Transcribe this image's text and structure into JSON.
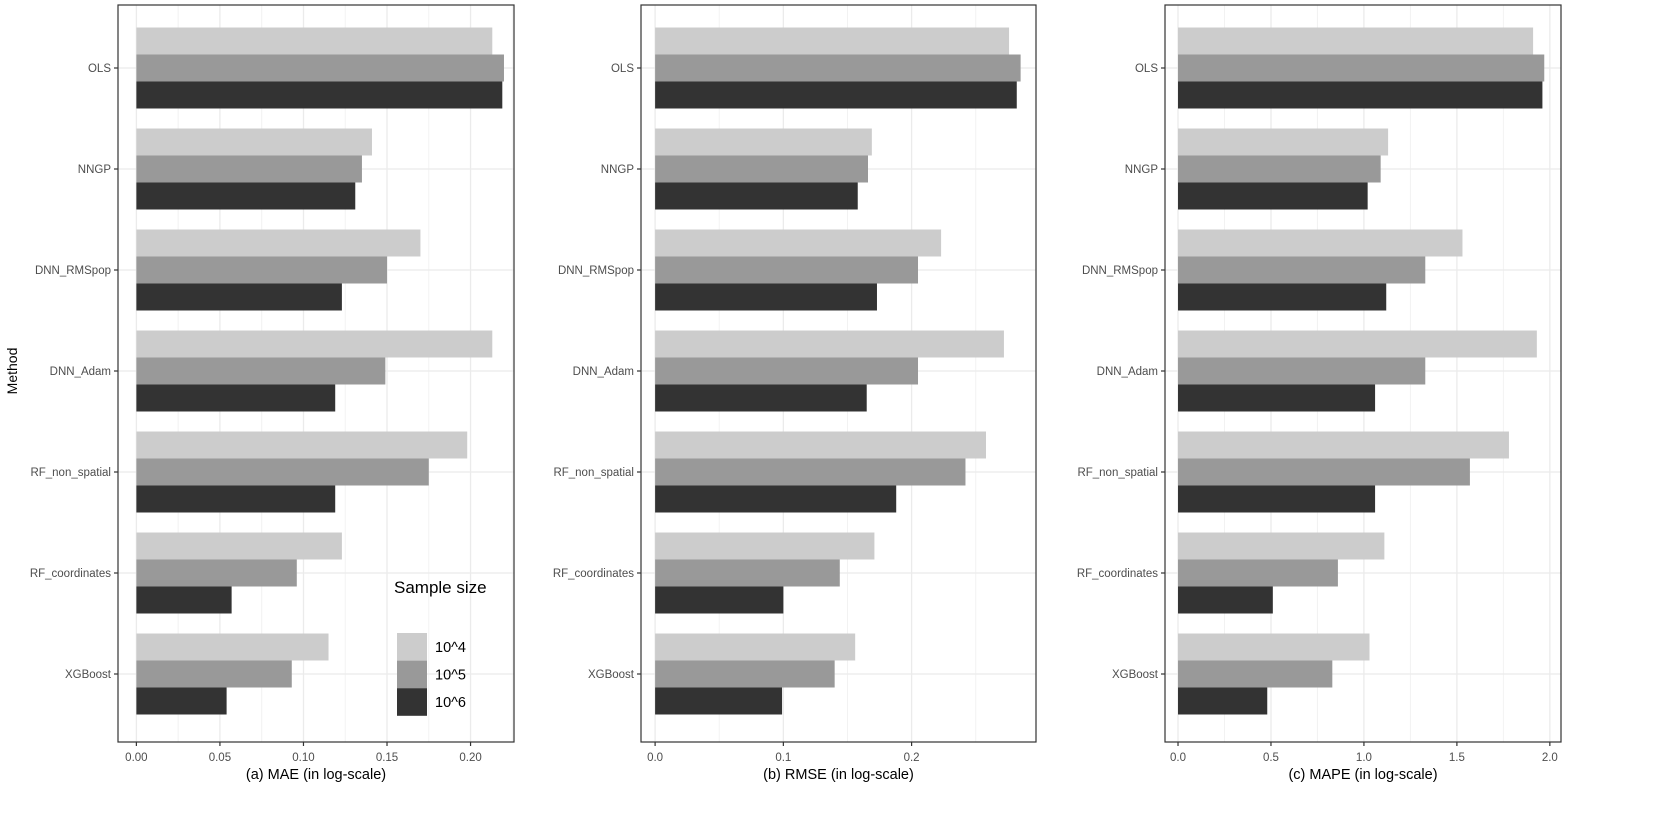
{
  "y_axis_title": "Method",
  "legend": {
    "title": "Sample size",
    "placement": "inside-bottom-right of panel (a)",
    "entries": [
      {
        "name": "10^4",
        "color": "#cccccc"
      },
      {
        "name": "10^5",
        "color": "#999999"
      },
      {
        "name": "10^6",
        "color": "#333333"
      }
    ]
  },
  "chart_data": [
    {
      "type": "bar",
      "orientation": "horizontal",
      "xlabel": "(a) MAE (in log-scale)",
      "ylabel": "Method",
      "categories": [
        "OLS",
        "NNGP",
        "DNN_RMSpop",
        "DNN_Adam",
        "RF_non_spatial",
        "RF_coordinates",
        "XGBoost"
      ],
      "xticks": [
        "0.00",
        "0.05",
        "0.10",
        "0.15",
        "0.20"
      ],
      "xtick_values": [
        0,
        0.05,
        0.1,
        0.15,
        0.2
      ],
      "xlim": [
        -0.011,
        0.226
      ],
      "grid": true,
      "series": [
        {
          "name": "10^4",
          "values": [
            0.213,
            0.141,
            0.17,
            0.213,
            0.198,
            0.123,
            0.115
          ]
        },
        {
          "name": "10^5",
          "values": [
            0.22,
            0.135,
            0.15,
            0.149,
            0.175,
            0.096,
            0.093
          ]
        },
        {
          "name": "10^6",
          "values": [
            0.219,
            0.131,
            0.123,
            0.119,
            0.119,
            0.057,
            0.054
          ]
        }
      ]
    },
    {
      "type": "bar",
      "orientation": "horizontal",
      "xlabel": "(b) RMSE (in log-scale)",
      "ylabel": "",
      "categories": [
        "OLS",
        "NNGP",
        "DNN_RMSpop",
        "DNN_Adam",
        "RF_non_spatial",
        "RF_coordinates",
        "XGBoost"
      ],
      "xticks": [
        "0.0",
        "0.1",
        "0.2"
      ],
      "xtick_values": [
        0,
        0.1,
        0.2
      ],
      "xlim": [
        -0.011,
        0.297
      ],
      "grid": true,
      "series": [
        {
          "name": "10^4",
          "values": [
            0.276,
            0.169,
            0.223,
            0.272,
            0.258,
            0.171,
            0.156
          ]
        },
        {
          "name": "10^5",
          "values": [
            0.285,
            0.166,
            0.205,
            0.205,
            0.242,
            0.144,
            0.14
          ]
        },
        {
          "name": "10^6",
          "values": [
            0.282,
            0.158,
            0.173,
            0.165,
            0.188,
            0.1,
            0.099
          ]
        }
      ]
    },
    {
      "type": "bar",
      "orientation": "horizontal",
      "xlabel": "(c) MAPE (in log-scale)",
      "ylabel": "",
      "categories": [
        "OLS",
        "NNGP",
        "DNN_RMSpop",
        "DNN_Adam",
        "RF_non_spatial",
        "RF_coordinates",
        "XGBoost"
      ],
      "xticks": [
        "0.0",
        "0.5",
        "1.0",
        "1.5",
        "2.0"
      ],
      "xtick_values": [
        0,
        0.5,
        1.0,
        1.5,
        2.0
      ],
      "xlim": [
        -0.07,
        2.06
      ],
      "grid": true,
      "series": [
        {
          "name": "10^4",
          "values": [
            1.91,
            1.13,
            1.53,
            1.93,
            1.78,
            1.11,
            1.03
          ]
        },
        {
          "name": "10^5",
          "values": [
            1.97,
            1.09,
            1.33,
            1.33,
            1.57,
            0.86,
            0.83
          ]
        },
        {
          "name": "10^6",
          "values": [
            1.96,
            1.02,
            1.12,
            1.06,
            1.06,
            0.51,
            0.48
          ]
        }
      ]
    }
  ]
}
